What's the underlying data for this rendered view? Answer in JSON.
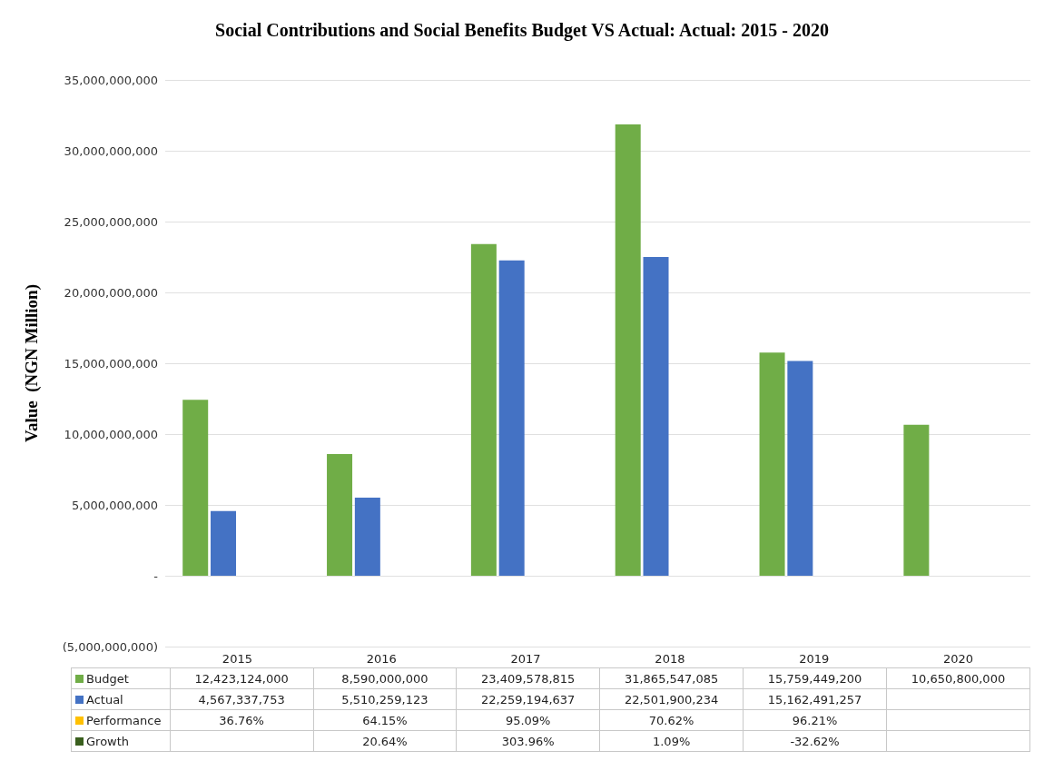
{
  "chart_data": {
    "type": "bar",
    "title": "Social Contributions and Social Benefits Budget VS Actual: Actual: 2015 - 2020",
    "ylabel": "Value  (NGN Million)",
    "categories": [
      "2015",
      "2016",
      "2017",
      "2018",
      "2019",
      "2020"
    ],
    "series": [
      {
        "name": "Budget",
        "color": "#70ad47",
        "values": [
          12423124000,
          8590000000,
          23409578815,
          31865547085,
          15759449200,
          10650800000
        ],
        "value_labels": [
          "12,423,124,000",
          "8,590,000,000",
          "23,409,578,815",
          "31,865,547,085",
          "15,759,449,200",
          "10,650,800,000"
        ]
      },
      {
        "name": "Actual",
        "color": "#4472c4",
        "values": [
          4567337753,
          5510259123,
          22259194637,
          22501900234,
          15162491257,
          null
        ],
        "value_labels": [
          "4,567,337,753",
          "5,510,259,123",
          "22,259,194,637",
          "22,501,900,234",
          "15,162,491,257",
          null
        ]
      },
      {
        "name": "Performance",
        "color": "#ffc000",
        "values": [
          36.76,
          64.15,
          95.09,
          70.62,
          96.21,
          null
        ],
        "value_labels": [
          "36.76%",
          "64.15%",
          "95.09%",
          "70.62%",
          "96.21%",
          null
        ]
      },
      {
        "name": "Growth",
        "color": "#3a5f1e",
        "values": [
          null,
          20.64,
          303.96,
          1.09,
          -32.62,
          null
        ],
        "value_labels": [
          null,
          "20.64%",
          "303.96%",
          "1.09%",
          "-32.62%",
          null
        ]
      }
    ],
    "ylim": [
      -5000000000,
      35000000000
    ],
    "yticks": [
      {
        "value": -5000000000,
        "label": "(5,000,000,000)"
      },
      {
        "value": 0,
        "label": "-"
      },
      {
        "value": 5000000000,
        "label": "5,000,000,000"
      },
      {
        "value": 10000000000,
        "label": "10,000,000,000"
      },
      {
        "value": 15000000000,
        "label": "15,000,000,000"
      },
      {
        "value": 20000000000,
        "label": "20,000,000,000"
      },
      {
        "value": 25000000000,
        "label": "25,000,000,000"
      },
      {
        "value": 30000000000,
        "label": "30,000,000,000"
      },
      {
        "value": 35000000000,
        "label": "35,000,000,000"
      }
    ],
    "grid": "y",
    "legend": "bottom"
  }
}
